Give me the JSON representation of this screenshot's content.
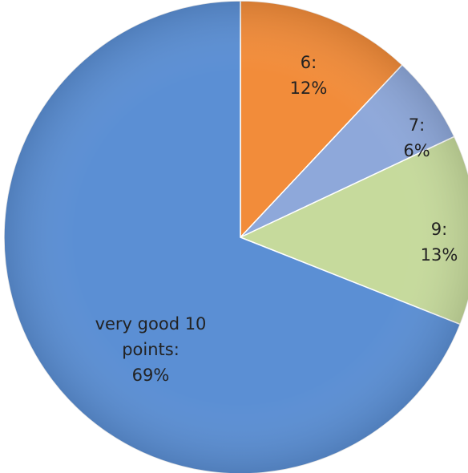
{
  "chart_data": {
    "type": "pie",
    "categories": [
      "6:",
      "7:",
      "9:",
      "very good 10 points:"
    ],
    "values": [
      12,
      6,
      13,
      69
    ],
    "value_labels": [
      "12%",
      "6%",
      "13%",
      "69%"
    ],
    "colors": [
      "#f28c3a",
      "#8ea8da",
      "#c6da9c",
      "#5b8fd4"
    ]
  }
}
